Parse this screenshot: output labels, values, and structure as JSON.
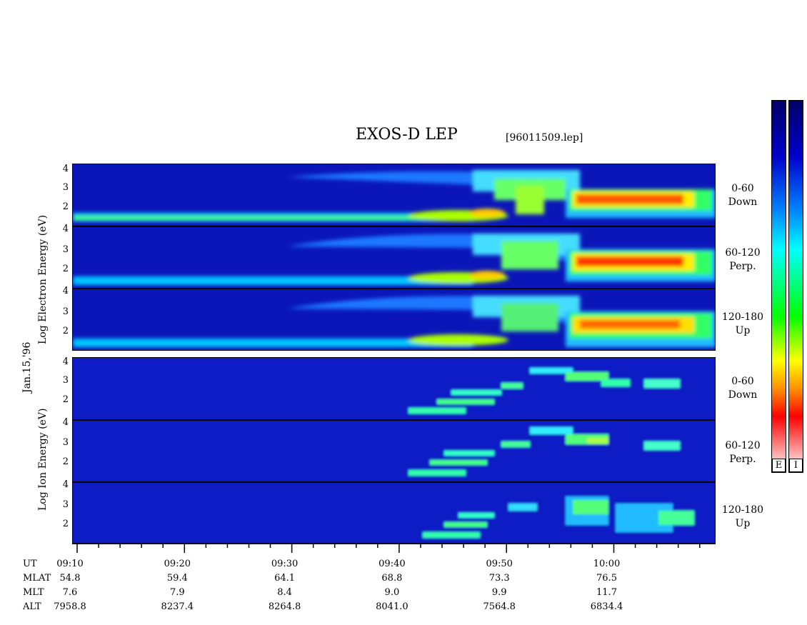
{
  "title": "EXOS-D LEP",
  "file": "[96011509.lep]",
  "date_label": "Jan.15,'96",
  "electron_axis_label": "Log Electron Energy (eV)",
  "ion_axis_label": "Log Ion Energy (eV)",
  "channels": [
    {
      "range": "0-60",
      "dir": "Down"
    },
    {
      "range": "60-120",
      "dir": "Perp."
    },
    {
      "range": "120-180",
      "dir": "Up"
    }
  ],
  "colorbar_labels": [
    "E",
    "I"
  ],
  "colors": {
    "background_spec": "#0b16b8",
    "spec_scale": [
      "#ffffff",
      "#ff0000",
      "#ff8800",
      "#ffff00",
      "#00cc00",
      "#00ffff",
      "#0077ff",
      "#0000aa"
    ]
  },
  "chart_data": {
    "type": "heatmap",
    "title": "EXOS-D LEP",
    "panels": [
      {
        "name": "Electron",
        "yticks": [
          "4",
          "3",
          "2",
          ""
        ],
        "channels": [
          "0-60 Down",
          "60-120 Perp.",
          "120-180 Up"
        ]
      },
      {
        "name": "Ion",
        "yticks": [
          "4",
          "3",
          "2",
          ""
        ],
        "channels": [
          "0-60 Down",
          "60-120 Perp.",
          "120-180 Up"
        ]
      }
    ],
    "x_ticks": [
      "09:10",
      "09:20",
      "09:30",
      "09:40",
      "09:50",
      "10:00"
    ],
    "ephemeris": {
      "labels": [
        "UT",
        "MLAT",
        "MLT",
        "ALT"
      ],
      "MLAT": [
        "54.8",
        "59.4",
        "64.1",
        "68.8",
        "73.3",
        "76.5"
      ],
      "MLT": [
        "7.6",
        "7.9",
        "8.4",
        "9.0",
        "9.9",
        "11.7"
      ],
      "ALT": [
        "7958.8",
        "8237.4",
        "8264.8",
        "8041.0",
        "7564.8",
        "6834.4"
      ]
    },
    "ylabel": "Log Energy (eV)"
  }
}
